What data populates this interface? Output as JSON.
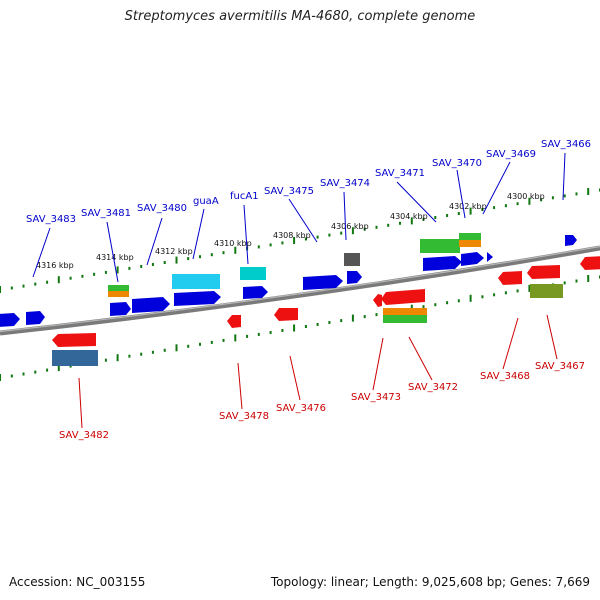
{
  "header": {
    "title": "Streptomyces avermitilis MA-4680, complete genome"
  },
  "footer": {
    "accession": "Accession: NC_003155",
    "summary": "Topology: linear; Length: 9,025,608 bp; Genes: 7,669"
  },
  "colors": {
    "forward_label": "#0000cc",
    "reverse_label": "#cc0000",
    "tick": "#117711",
    "backbone": "#808080"
  },
  "scale_labels": [
    "4316 kbp",
    "4314 kbp",
    "4312 kbp",
    "4310 kbp",
    "4308 kbp",
    "4306 kbp",
    "4304 kbp",
    "4302 kbp",
    "4300 kbp"
  ],
  "forward_genes": [
    "SAV_3483",
    "SAV_3481",
    "SAV_3480",
    "guaA",
    "fucA1",
    "SAV_3475",
    "SAV_3474",
    "SAV_3471",
    "SAV_3470",
    "SAV_3469",
    "SAV_3466"
  ],
  "reverse_genes": [
    "SAV_3482",
    "SAV_3478",
    "SAV_3476",
    "SAV_3473",
    "SAV_3472",
    "SAV_3468",
    "SAV_3467"
  ]
}
